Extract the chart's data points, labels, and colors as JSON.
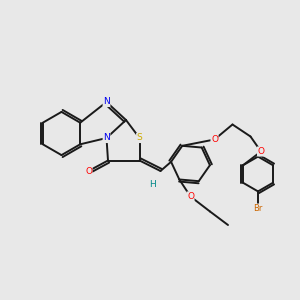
{
  "bg": "#e8e8e8",
  "bond_color": "#1a1a1a",
  "atom_colors": {
    "N": "#0000ee",
    "O": "#ff0000",
    "S": "#ccaa00",
    "Br": "#cc6600",
    "H": "#008888"
  },
  "lw": 1.4,
  "off": 0.085,
  "fontsize": 6.5
}
